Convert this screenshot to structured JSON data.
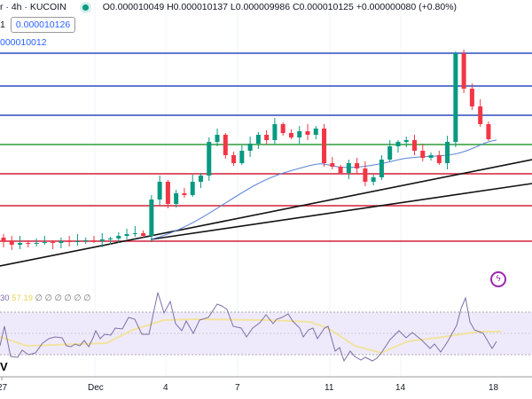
{
  "header": {
    "symbol": "r · 4h · KUCOIN",
    "ohlc": "O0.000010049 H0.000010137 L0.000009986 C0.000010125 +0.000000080 (+0.80%)",
    "line2_prefix": "1",
    "price_box": "0.000010126",
    "line3": "000010012"
  },
  "colors": {
    "up": "#089981",
    "down": "#f23645",
    "blue_level": "#2a4dbf",
    "green_level": "#2e9e3c",
    "red_level": "#d0213a",
    "ma": "#5b84d6",
    "rsi": "#7e6fa8",
    "rsi_ma": "#f1e3a0"
  },
  "levels": [
    {
      "price": 1.03675e-05,
      "color": "blue"
    },
    {
      "price": 1.0275e-05,
      "color": "blue"
    },
    {
      "price": 1.01925e-05,
      "color": "blue"
    },
    {
      "price": 1.011e-05,
      "color": "green"
    },
    {
      "price": 1.00275e-05,
      "color": "red"
    },
    {
      "price": 9.9375e-06,
      "color": "red"
    },
    {
      "price": 9.8375e-06,
      "color": "red"
    }
  ],
  "closes": [
    9.8475e-06,
    9.8375e-06,
    9.8275e-06,
    9.8325e-06,
    9.83e-06,
    9.8325e-06,
    9.835e-06,
    9.8325e-06,
    9.8375e-06,
    9.835e-06,
    9.8375e-06,
    9.84e-06,
    9.8375e-06,
    9.8425e-06,
    9.845e-06,
    9.8525e-06,
    9.8575e-06,
    9.86e-06,
    9.8525e-06,
    9.955e-06,
    1.0005e-05,
    9.9425e-06,
    9.9725e-06,
    9.9675e-06,
    1.0005e-05,
    1.00225e-05,
    1.01175e-05,
    1.01375e-05,
    1.008e-05,
    1.00575e-05,
    1.00925e-05,
    1.01125e-05,
    1.01375e-05,
    1.01225e-05,
    1.01675e-05,
    1.01425e-05,
    1.013e-05,
    1.01475e-05,
    1.01375e-05,
    1.0155e-05,
    1.00575e-05,
    1.00475e-05,
    1.003e-05,
    1.00575e-05,
    1.00425e-05,
    1.0005e-05,
    1.00175e-05,
    1.00675e-05,
    1.0105e-05,
    1.01175e-05,
    1.01225e-05,
    1.00925e-05,
    1.00725e-05,
    1.008e-05,
    1.00575e-05,
    1.01175e-05,
    1.03675e-05,
    1.02675e-05,
    1.02175e-05,
    1.01675e-05,
    1.0125e-05
  ],
  "rsi_header": {
    "a": "30",
    "b": "57.19",
    "c": "∅ ∅ ∅ ∅ ∅ ∅"
  },
  "rsi_label": "V",
  "xaxis": [
    "27",
    "Dec",
    "4",
    "7",
    "11",
    "14",
    "18"
  ],
  "icons": {
    "alert": "lightning-icon"
  }
}
